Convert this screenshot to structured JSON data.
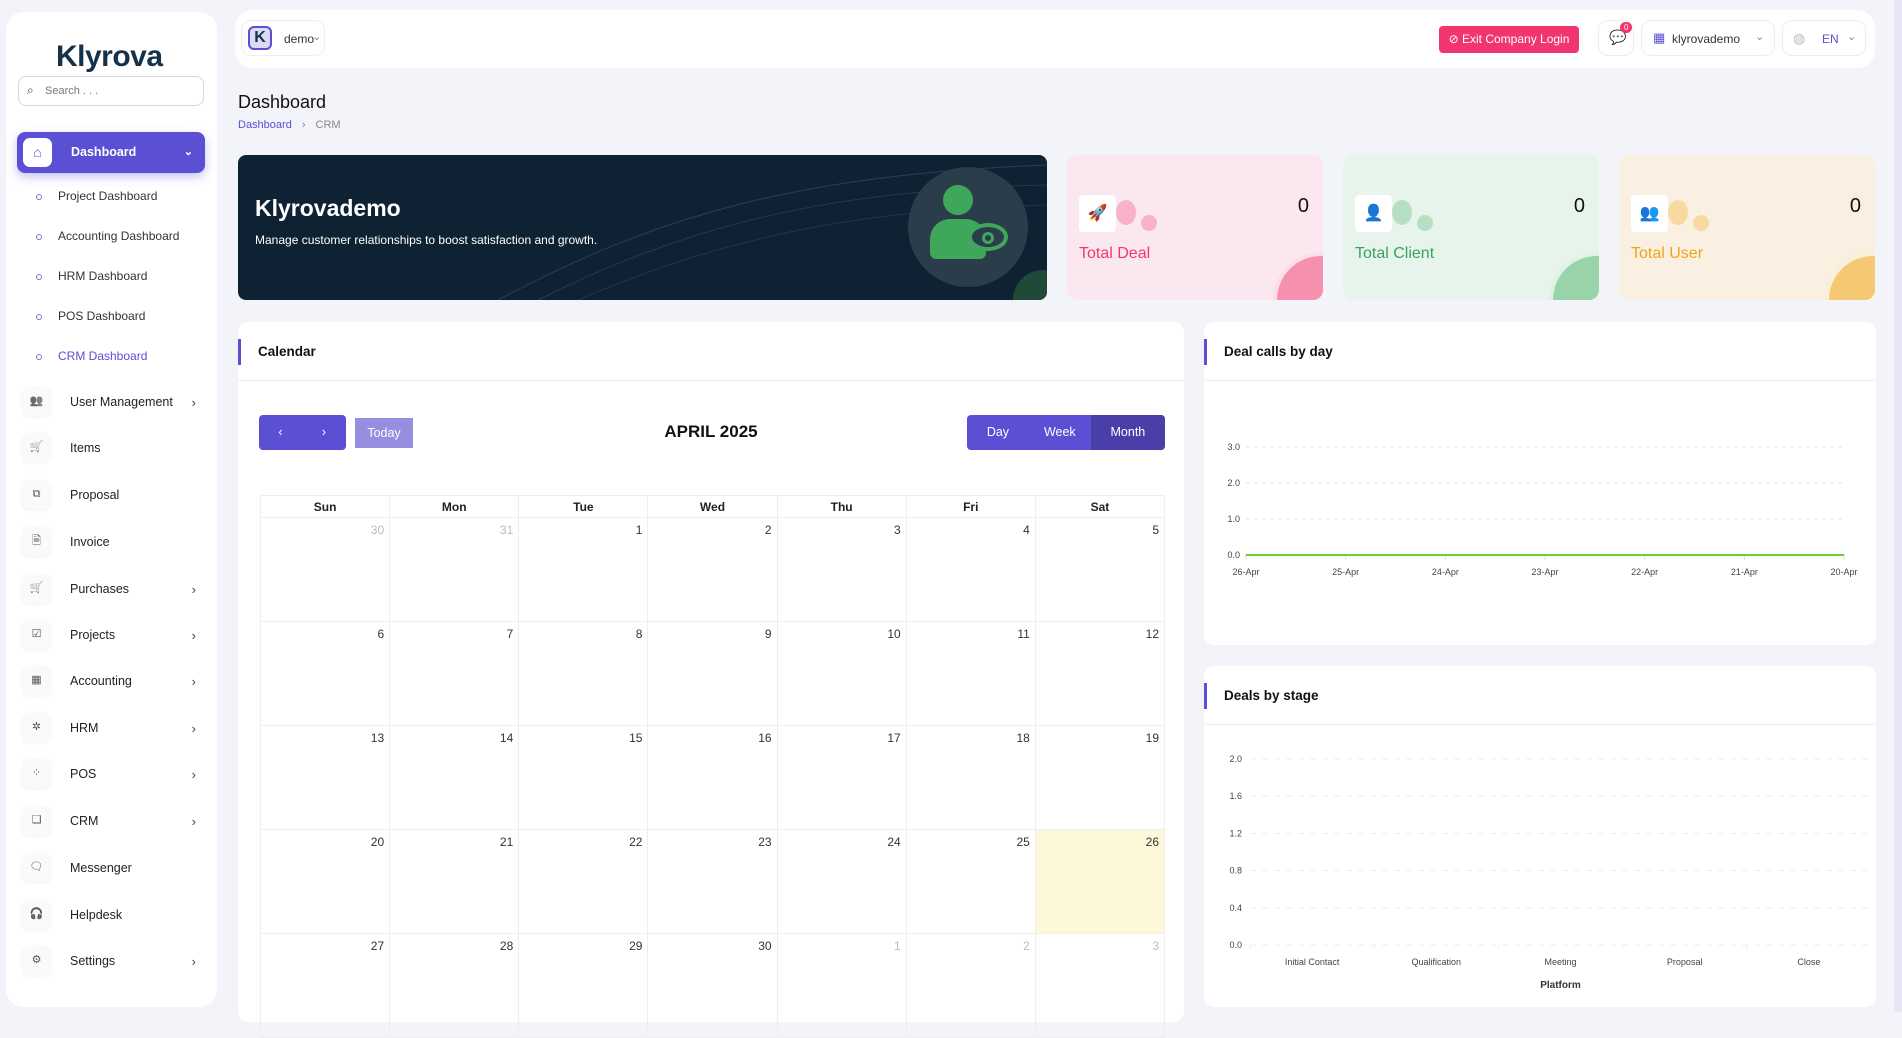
{
  "sidebar": {
    "logo": "Klyrova",
    "search_placeholder": "Search . . .",
    "active": {
      "label": "Dashboard",
      "icon": "home-icon"
    },
    "subitems": [
      "Project Dashboard",
      "Accounting Dashboard",
      "HRM Dashboard",
      "POS Dashboard",
      "CRM Dashboard"
    ],
    "active_subitem": "CRM Dashboard",
    "items": [
      {
        "label": "User Management",
        "icon": "users-icon",
        "chevron": true
      },
      {
        "label": "Items",
        "icon": "cart-icon",
        "chevron": false
      },
      {
        "label": "Proposal",
        "icon": "proposal-icon",
        "chevron": false
      },
      {
        "label": "Invoice",
        "icon": "invoice-icon",
        "chevron": false
      },
      {
        "label": "Purchases",
        "icon": "cart-icon",
        "chevron": true
      },
      {
        "label": "Projects",
        "icon": "checkbox-icon",
        "chevron": true
      },
      {
        "label": "Accounting",
        "icon": "grid-icon",
        "chevron": true
      },
      {
        "label": "HRM",
        "icon": "hrm-icon",
        "chevron": true
      },
      {
        "label": "POS",
        "icon": "dots-grid-icon",
        "chevron": true
      },
      {
        "label": "CRM",
        "icon": "layers-icon",
        "chevron": true
      },
      {
        "label": "Messenger",
        "icon": "message-icon",
        "chevron": false
      },
      {
        "label": "Helpdesk",
        "icon": "headset-icon",
        "chevron": false
      },
      {
        "label": "Settings",
        "icon": "gear-icon",
        "chevron": true
      }
    ]
  },
  "header": {
    "company": "demo",
    "exit_label": "Exit Company Login",
    "notification_count": "0",
    "user": "klyrovademo",
    "language": "EN"
  },
  "page": {
    "title": "Dashboard",
    "breadcrumb": [
      "Dashboard",
      "CRM"
    ]
  },
  "banner": {
    "title": "Klyrovademo",
    "subtitle": "Manage customer relationships to boost satisfaction and growth."
  },
  "stats": [
    {
      "label": "Total Deal",
      "value": "0",
      "icon": "rocket-icon",
      "bg": "#fbe7ef",
      "accent": "#f0386b",
      "blob": "#f8b3c8",
      "corner": "#f590ae"
    },
    {
      "label": "Total Client",
      "value": "0",
      "icon": "user-icon",
      "bg": "#e7f4ec",
      "accent": "#3aa35b",
      "blob": "#b6e0c4",
      "corner": "#98d3aa"
    },
    {
      "label": "Total User",
      "value": "0",
      "icon": "users-icon",
      "bg": "#faf0e2",
      "accent": "#f2a31c",
      "blob": "#f8d9a1",
      "corner": "#f5c874"
    }
  ],
  "calendar": {
    "title": "Calendar",
    "month_label": "APRIL 2025",
    "today_label": "Today",
    "views": [
      "Day",
      "Week",
      "Month"
    ],
    "active_view": "Month",
    "weekdays": [
      "Sun",
      "Mon",
      "Tue",
      "Wed",
      "Thu",
      "Fri",
      "Sat"
    ],
    "weeks": [
      [
        {
          "d": "30",
          "o": true
        },
        {
          "d": "31",
          "o": true
        },
        {
          "d": "1"
        },
        {
          "d": "2"
        },
        {
          "d": "3"
        },
        {
          "d": "4"
        },
        {
          "d": "5"
        }
      ],
      [
        {
          "d": "6"
        },
        {
          "d": "7"
        },
        {
          "d": "8"
        },
        {
          "d": "9"
        },
        {
          "d": "10"
        },
        {
          "d": "11"
        },
        {
          "d": "12"
        }
      ],
      [
        {
          "d": "13"
        },
        {
          "d": "14"
        },
        {
          "d": "15"
        },
        {
          "d": "16"
        },
        {
          "d": "17"
        },
        {
          "d": "18"
        },
        {
          "d": "19"
        }
      ],
      [
        {
          "d": "20"
        },
        {
          "d": "21"
        },
        {
          "d": "22"
        },
        {
          "d": "23"
        },
        {
          "d": "24"
        },
        {
          "d": "25"
        },
        {
          "d": "26",
          "today": true
        }
      ],
      [
        {
          "d": "27"
        },
        {
          "d": "28"
        },
        {
          "d": "29"
        },
        {
          "d": "30"
        },
        {
          "d": "1",
          "o": true
        },
        {
          "d": "2",
          "o": true
        },
        {
          "d": "3",
          "o": true
        }
      ]
    ]
  },
  "chart_data": [
    {
      "type": "line",
      "title": "Deal calls by day",
      "x": [
        "26-Apr",
        "25-Apr",
        "24-Apr",
        "23-Apr",
        "22-Apr",
        "21-Apr",
        "20-Apr"
      ],
      "values": [
        0,
        0,
        0,
        0,
        0,
        0,
        0
      ],
      "ylim": [
        0,
        3
      ],
      "yticks": [
        "0.0",
        "1.0",
        "2.0",
        "3.0"
      ],
      "grid": true,
      "color": "#6fcf2f"
    },
    {
      "type": "bar",
      "title": "Deals by stage",
      "categories": [
        "Initial Contact",
        "Qualification",
        "Meeting",
        "Proposal",
        "Close"
      ],
      "values": [
        0,
        0,
        0,
        0,
        0
      ],
      "ylim": [
        0,
        2
      ],
      "yticks": [
        "0.0",
        "0.4",
        "0.8",
        "1.2",
        "1.6",
        "2.0"
      ],
      "xlabel": "Platform",
      "grid": true,
      "color": "#5b4fd3"
    }
  ]
}
